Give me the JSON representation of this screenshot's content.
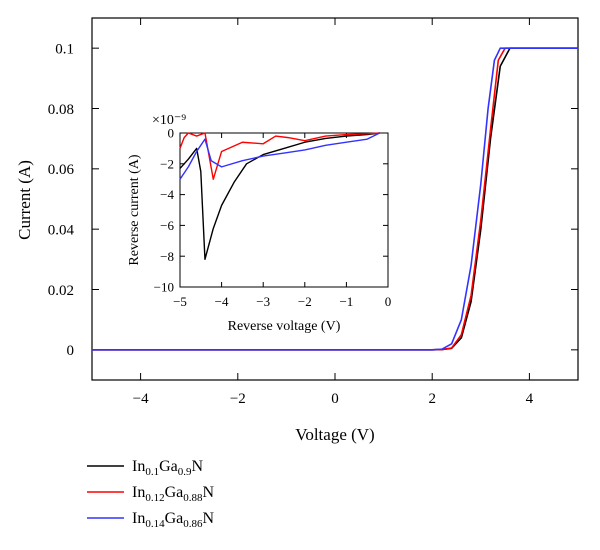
{
  "chart_data": [
    {
      "type": "line",
      "xlabel": "Voltage (V)",
      "ylabel": "Current (A)",
      "xlim": [
        -5,
        5
      ],
      "ylim": [
        -0.01,
        0.11
      ],
      "xticks": [
        -4,
        -2,
        0,
        2,
        4
      ],
      "yticks": [
        0,
        0.02,
        0.04,
        0.06,
        0.08,
        0.1
      ],
      "xtick_labels": [
        "−4",
        "−2",
        "0",
        "2",
        "4"
      ],
      "ytick_labels": [
        "0",
        "0.02",
        "0.04",
        "0.06",
        "0.08",
        "0.1"
      ],
      "grid": false,
      "series": [
        {
          "name": "In0.1Ga0.9N",
          "color": "#000000",
          "points": [
            [
              -5,
              0
            ],
            [
              2.0,
              0
            ],
            [
              2.2,
              0.0001
            ],
            [
              2.4,
              0.0005
            ],
            [
              2.6,
              0.004
            ],
            [
              2.8,
              0.016
            ],
            [
              3.0,
              0.04
            ],
            [
              3.2,
              0.07
            ],
            [
              3.4,
              0.094
            ],
            [
              3.6,
              0.1
            ],
            [
              5,
              0.1
            ]
          ]
        },
        {
          "name": "In0.12Ga0.88N",
          "color": "#ff0000",
          "points": [
            [
              -5,
              0
            ],
            [
              2.0,
              0
            ],
            [
              2.2,
              0.0001
            ],
            [
              2.4,
              0.0006
            ],
            [
              2.6,
              0.005
            ],
            [
              2.8,
              0.018
            ],
            [
              3.0,
              0.043
            ],
            [
              3.2,
              0.073
            ],
            [
              3.36,
              0.096
            ],
            [
              3.5,
              0.1
            ],
            [
              5,
              0.1
            ]
          ]
        },
        {
          "name": "In0.14Ga0.86N",
          "color": "#3333ff",
          "points": [
            [
              -5,
              0
            ],
            [
              2.0,
              0
            ],
            [
              2.2,
              0.0002
            ],
            [
              2.4,
              0.002
            ],
            [
              2.6,
              0.01
            ],
            [
              2.8,
              0.028
            ],
            [
              3.0,
              0.055
            ],
            [
              3.15,
              0.08
            ],
            [
              3.28,
              0.096
            ],
            [
              3.4,
              0.1
            ],
            [
              5,
              0.1
            ]
          ]
        }
      ]
    },
    {
      "type": "line",
      "xlabel": "Reverse voltage (V)",
      "ylabel": "Reverse current (A)",
      "scale_label": "×10⁻⁹",
      "xlim": [
        -5,
        0
      ],
      "ylim": [
        -10,
        0
      ],
      "xticks": [
        -5,
        -4,
        -3,
        -2,
        -1,
        0
      ],
      "yticks": [
        -10,
        -8,
        -6,
        -4,
        -2,
        0
      ],
      "xtick_labels": [
        "−5",
        "−4",
        "−3",
        "−2",
        "−1",
        "0"
      ],
      "ytick_labels": [
        "−10",
        "−8",
        "−6",
        "−4",
        "−2",
        "0"
      ],
      "grid": false,
      "series": [
        {
          "name": "In0.1Ga0.9N",
          "color": "#000000",
          "points": [
            [
              -5,
              -2.3
            ],
            [
              -4.8,
              -1.7
            ],
            [
              -4.6,
              -1.0
            ],
            [
              -4.5,
              -2.5
            ],
            [
              -4.4,
              -8.2
            ],
            [
              -4.2,
              -6.2
            ],
            [
              -4.0,
              -4.7
            ],
            [
              -3.7,
              -3.2
            ],
            [
              -3.4,
              -2.0
            ],
            [
              -3.0,
              -1.4
            ],
            [
              -2.5,
              -1.0
            ],
            [
              -2.0,
              -0.6
            ],
            [
              -1.5,
              -0.35
            ],
            [
              -1.0,
              -0.2
            ],
            [
              -0.5,
              -0.1
            ],
            [
              -0.2,
              0
            ]
          ]
        },
        {
          "name": "In0.12Ga0.88N",
          "color": "#ff0000",
          "points": [
            [
              -5,
              -1.0
            ],
            [
              -4.9,
              -0.3
            ],
            [
              -4.8,
              0
            ],
            [
              -4.6,
              -0.2
            ],
            [
              -4.4,
              0
            ],
            [
              -4.2,
              -3.0
            ],
            [
              -4.0,
              -1.2
            ],
            [
              -3.5,
              -0.6
            ],
            [
              -3.0,
              -0.7
            ],
            [
              -2.7,
              -0.2
            ],
            [
              -2.4,
              -0.3
            ],
            [
              -2.0,
              -0.5
            ],
            [
              -1.5,
              -0.2
            ],
            [
              -1.0,
              -0.1
            ],
            [
              -0.5,
              -0.05
            ],
            [
              -0.2,
              0
            ]
          ]
        },
        {
          "name": "In0.14Ga0.86N",
          "color": "#3333ff",
          "points": [
            [
              -5,
              -3.0
            ],
            [
              -4.8,
              -2.2
            ],
            [
              -4.6,
              -1.2
            ],
            [
              -4.5,
              -0.8
            ],
            [
              -4.4,
              -0.4
            ],
            [
              -4.25,
              -1.8
            ],
            [
              -4.0,
              -2.2
            ],
            [
              -3.5,
              -1.8
            ],
            [
              -3.0,
              -1.5
            ],
            [
              -2.5,
              -1.3
            ],
            [
              -2.0,
              -1.1
            ],
            [
              -1.5,
              -0.8
            ],
            [
              -1.0,
              -0.6
            ],
            [
              -0.5,
              -0.4
            ],
            [
              -0.2,
              0
            ]
          ]
        }
      ]
    }
  ],
  "legend": [
    {
      "base1": "In",
      "sub1": "0.1",
      "base2": "Ga",
      "sub2": "0.9",
      "base3": "N",
      "color": "#000000"
    },
    {
      "base1": "In",
      "sub1": "0.12",
      "base2": "Ga",
      "sub2": "0.88",
      "base3": "N",
      "color": "#ff0000"
    },
    {
      "base1": "In",
      "sub1": "0.14",
      "base2": "Ga",
      "sub2": "0.86",
      "base3": "N",
      "color": "#3333ff"
    }
  ]
}
